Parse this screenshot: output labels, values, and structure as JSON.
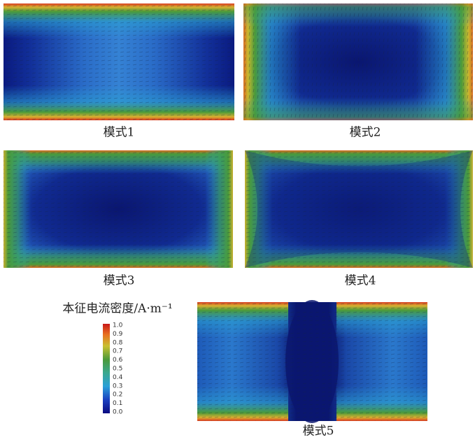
{
  "panels": [
    {
      "label": "模式1"
    },
    {
      "label": "模式2"
    },
    {
      "label": "模式3"
    },
    {
      "label": "模式4"
    },
    {
      "label": "模式5"
    }
  ],
  "colorbar": {
    "title": "本征电流密度/A·m⁻¹",
    "ticks": [
      "1.0",
      "0.9",
      "0.8",
      "0.7",
      "0.6",
      "0.5",
      "0.4",
      "0.3",
      "0.2",
      "0.1",
      "0.0"
    ]
  }
}
